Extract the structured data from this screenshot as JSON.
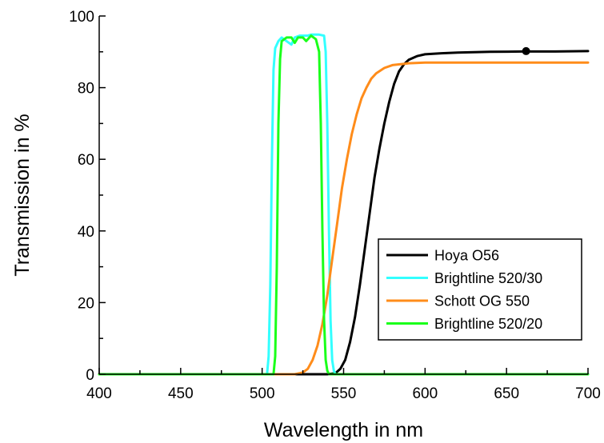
{
  "chart_data": {
    "type": "line",
    "title": "",
    "xlabel": "Wavelength in nm",
    "ylabel": "Transmission in %",
    "xlim": [
      400,
      700
    ],
    "ylim": [
      0,
      100
    ],
    "xticks": [
      400,
      450,
      500,
      550,
      600,
      650,
      700
    ],
    "xtick_labels": [
      "400",
      "450",
      "500",
      "550",
      "600",
      "650",
      "700"
    ],
    "yticks": [
      0,
      20,
      40,
      60,
      80,
      100
    ],
    "ytick_labels": [
      "0",
      "20",
      "40",
      "60",
      "80",
      "100"
    ],
    "grid": false,
    "legend_position": "center-right",
    "series": [
      {
        "name": "Hoya O56",
        "color": "#000000",
        "x": [
          400,
          540,
          545,
          548,
          551,
          554,
          557,
          560,
          563,
          566,
          569,
          572,
          575,
          578,
          581,
          584,
          587,
          590,
          595,
          600,
          610,
          620,
          640,
          660,
          680,
          700
        ],
        "y": [
          0,
          0,
          0.3,
          1.5,
          4,
          9,
          16,
          25,
          35,
          45,
          55,
          63,
          70,
          76,
          81,
          84.5,
          86.5,
          87.8,
          88.8,
          89.3,
          89.6,
          89.8,
          90.0,
          90.1,
          90.1,
          90.2
        ]
      },
      {
        "name": "Brightline 520/30",
        "color": "#33ffff",
        "x": [
          400,
          503,
          504,
          505,
          506,
          507,
          508,
          510,
          512,
          515,
          518,
          520,
          523,
          525,
          528,
          530,
          535,
          538,
          539,
          540,
          541,
          542,
          543,
          544,
          545,
          700
        ],
        "y": [
          0,
          0,
          5,
          25,
          60,
          85,
          91,
          93,
          94,
          93,
          92,
          94,
          94.5,
          94.5,
          94.5,
          94.8,
          94.8,
          94.5,
          90,
          70,
          40,
          15,
          4,
          1,
          0,
          0
        ]
      },
      {
        "name": "Schott OG 550",
        "color": "#ff8c1a",
        "x": [
          400,
          520,
          525,
          528,
          531,
          534,
          537,
          540,
          543,
          546,
          549,
          552,
          555,
          558,
          561,
          564,
          567,
          570,
          575,
          580,
          590,
          600,
          620,
          650,
          680,
          700
        ],
        "y": [
          0,
          0,
          0.5,
          1.5,
          4,
          8,
          14,
          22,
          32,
          42,
          52,
          60,
          67,
          72.5,
          77,
          80,
          82.5,
          84,
          85.5,
          86.3,
          86.8,
          87.0,
          87.0,
          87.0,
          87.0,
          87.0
        ]
      },
      {
        "name": "Brightline 520/20",
        "color": "#1aff1a",
        "x": [
          400,
          507,
          508,
          509,
          510,
          511,
          512,
          515,
          518,
          520,
          522,
          525,
          527,
          530,
          533,
          535,
          536,
          537,
          538,
          539,
          540,
          541,
          700
        ],
        "y": [
          0,
          0,
          5,
          30,
          70,
          88,
          93,
          94,
          94,
          92.5,
          94,
          94,
          93,
          94.5,
          93.5,
          90,
          70,
          40,
          15,
          4,
          1,
          0,
          0
        ]
      }
    ],
    "markers": [
      {
        "series": "Hoya O56",
        "x": 662,
        "y": 90.2
      }
    ]
  }
}
